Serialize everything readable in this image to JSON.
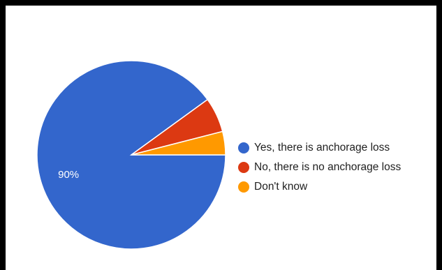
{
  "chart_data": {
    "type": "pie",
    "title": "",
    "slices": [
      {
        "label": "Yes, there is anchorage loss",
        "value": 90,
        "color": "#3366CC"
      },
      {
        "label": "No, there is no anchorage loss",
        "value": 6,
        "color": "#DC3912"
      },
      {
        "label": "Don't know",
        "value": 4,
        "color": "#FF9900"
      }
    ],
    "data_labels": [
      "90%",
      "",
      ""
    ],
    "legend": {
      "position": "right"
    }
  }
}
